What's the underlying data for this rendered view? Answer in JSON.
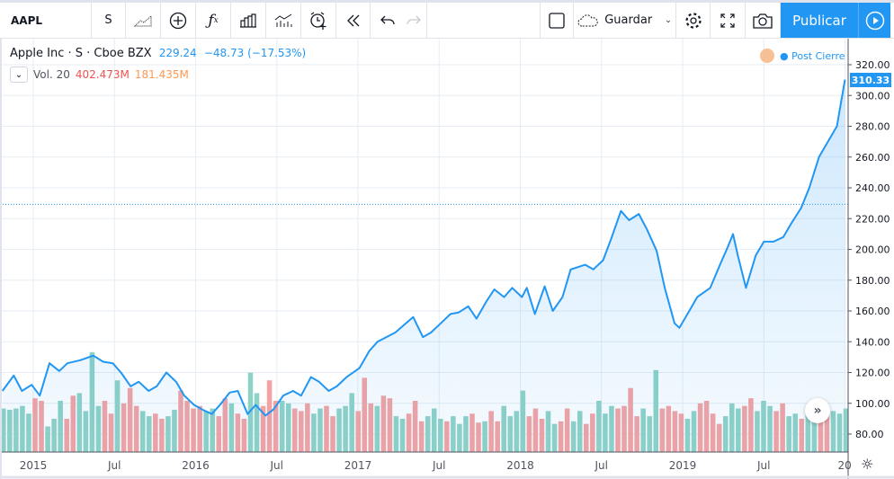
{
  "toolbar": {
    "symbol": "AAPL",
    "interval": "S",
    "save_label": "Guardar",
    "publish_label": "Publicar"
  },
  "legend": {
    "title": "Apple Inc · S · Cboe BZX",
    "price": "229.24",
    "change": "−48.73 (−17.53%)",
    "vol_label": "Vol. 20",
    "vol_value1": "402.473M",
    "vol_value2": "181.435M",
    "post_label": "● Post Cierre",
    "last_price": "310.33"
  },
  "colors": {
    "line": "#2196f3",
    "up": "#8fd2c6",
    "down": "#f4a3a3",
    "accent": "#2196f3"
  },
  "chart_data": {
    "type": "area",
    "title": "Apple Inc · S · Cboe BZX",
    "ylim": [
      70,
      330
    ],
    "y_ticks": [
      "80.00",
      "100.00",
      "120.00",
      "140.00",
      "160.00",
      "180.00",
      "200.00",
      "220.00",
      "240.00",
      "260.00",
      "280.00",
      "300.00",
      "320.00"
    ],
    "y_tick_values": [
      80,
      100,
      120,
      140,
      160,
      180,
      200,
      220,
      240,
      260,
      280,
      300,
      320
    ],
    "x_ticks": [
      {
        "label": "2015",
        "t": 2015
      },
      {
        "label": "Jul",
        "t": 2015.5
      },
      {
        "label": "2016",
        "t": 2016
      },
      {
        "label": "Jul",
        "t": 2016.5
      },
      {
        "label": "2017",
        "t": 2017
      },
      {
        "label": "Jul",
        "t": 2017.5
      },
      {
        "label": "2018",
        "t": 2018
      },
      {
        "label": "Jul",
        "t": 2018.5
      },
      {
        "label": "2019",
        "t": 2019
      },
      {
        "label": "Jul",
        "t": 2019.5
      },
      {
        "label": "20",
        "t": 2020
      }
    ],
    "reference_line": 229.24,
    "price": [
      [
        2014.81,
        108
      ],
      [
        2014.88,
        118
      ],
      [
        2014.93,
        108
      ],
      [
        2014.99,
        112
      ],
      [
        2015.04,
        105
      ],
      [
        2015.1,
        126
      ],
      [
        2015.16,
        121
      ],
      [
        2015.21,
        126
      ],
      [
        2015.29,
        128
      ],
      [
        2015.37,
        131
      ],
      [
        2015.43,
        127
      ],
      [
        2015.49,
        126
      ],
      [
        2015.54,
        120
      ],
      [
        2015.6,
        111
      ],
      [
        2015.65,
        114
      ],
      [
        2015.71,
        108
      ],
      [
        2015.76,
        111
      ],
      [
        2015.82,
        120
      ],
      [
        2015.88,
        114
      ],
      [
        2015.93,
        105
      ],
      [
        2015.99,
        99
      ],
      [
        2016.04,
        96
      ],
      [
        2016.1,
        93
      ],
      [
        2016.15,
        99
      ],
      [
        2016.21,
        107
      ],
      [
        2016.26,
        108
      ],
      [
        2016.32,
        93
      ],
      [
        2016.37,
        99
      ],
      [
        2016.43,
        92
      ],
      [
        2016.48,
        96
      ],
      [
        2016.54,
        105
      ],
      [
        2016.6,
        108
      ],
      [
        2016.65,
        105
      ],
      [
        2016.71,
        117
      ],
      [
        2016.76,
        114
      ],
      [
        2016.82,
        108
      ],
      [
        2016.87,
        111
      ],
      [
        2016.93,
        117
      ],
      [
        2017.01,
        123
      ],
      [
        2017.07,
        134
      ],
      [
        2017.12,
        140
      ],
      [
        2017.23,
        146
      ],
      [
        2017.34,
        156
      ],
      [
        2017.4,
        143
      ],
      [
        2017.45,
        146
      ],
      [
        2017.51,
        152
      ],
      [
        2017.57,
        158
      ],
      [
        2017.62,
        159
      ],
      [
        2017.68,
        163
      ],
      [
        2017.73,
        155
      ],
      [
        2017.79,
        166
      ],
      [
        2017.84,
        174
      ],
      [
        2017.9,
        169
      ],
      [
        2017.95,
        175
      ],
      [
        2018.01,
        169
      ],
      [
        2018.04,
        175
      ],
      [
        2018.09,
        158
      ],
      [
        2018.15,
        176
      ],
      [
        2018.2,
        160
      ],
      [
        2018.26,
        169
      ],
      [
        2018.31,
        187
      ],
      [
        2018.4,
        190
      ],
      [
        2018.45,
        187
      ],
      [
        2018.51,
        193
      ],
      [
        2018.56,
        207
      ],
      [
        2018.62,
        225
      ],
      [
        2018.67,
        219
      ],
      [
        2018.73,
        223
      ],
      [
        2018.78,
        213
      ],
      [
        2018.84,
        199
      ],
      [
        2018.89,
        175
      ],
      [
        2018.95,
        152
      ],
      [
        2018.98,
        149
      ],
      [
        2019.03,
        158
      ],
      [
        2019.09,
        169
      ],
      [
        2019.17,
        175
      ],
      [
        2019.23,
        190
      ],
      [
        2019.28,
        202
      ],
      [
        2019.31,
        210
      ],
      [
        2019.34,
        196
      ],
      [
        2019.39,
        175
      ],
      [
        2019.45,
        196
      ],
      [
        2019.5,
        205
      ],
      [
        2019.56,
        205
      ],
      [
        2019.62,
        208
      ],
      [
        2019.67,
        217
      ],
      [
        2019.73,
        227
      ],
      [
        2019.78,
        240
      ],
      [
        2019.84,
        260
      ],
      [
        2019.89,
        269
      ],
      [
        2019.95,
        280
      ],
      [
        2020.0,
        310.33
      ]
    ],
    "volume_start": 2014.81,
    "volume_end": 2020.0,
    "volume_millions": [
      170,
      165,
      170,
      180,
      150,
      210,
      200,
      100,
      130,
      200,
      130,
      220,
      230,
      160,
      390,
      180,
      200,
      150,
      280,
      190,
      250,
      180,
      160,
      140,
      150,
      130,
      140,
      165,
      240,
      200,
      170,
      180,
      160,
      170,
      140,
      210,
      190,
      150,
      130,
      310,
      230,
      180,
      280,
      200,
      200,
      190,
      170,
      160,
      190,
      150,
      170,
      180,
      140,
      170,
      180,
      230,
      160,
      290,
      190,
      180,
      220,
      210,
      140,
      130,
      150,
      200,
      120,
      140,
      170,
      130,
      120,
      140,
      110,
      140,
      150,
      115,
      120,
      160,
      120,
      180,
      140,
      160,
      240,
      140,
      170,
      130,
      160,
      110,
      120,
      170,
      120,
      160,
      110,
      150,
      200,
      150,
      180,
      170,
      180,
      250,
      140,
      170,
      140,
      320,
      170,
      180,
      160,
      150,
      130,
      160,
      190,
      200,
      150,
      110,
      140,
      190,
      170,
      180,
      210,
      160,
      200,
      180,
      160,
      190,
      140,
      150,
      130,
      170,
      150,
      170,
      180,
      160,
      150,
      170
    ],
    "volume_dirs": "uuuuudduuudduuuudduddduudduudddduuddudduuddduuddduudduuudddudduuddduuuduuuddudduuuuddduudduudduuudddduuudddduudddduuudduuudduuduudduuuu"
  }
}
